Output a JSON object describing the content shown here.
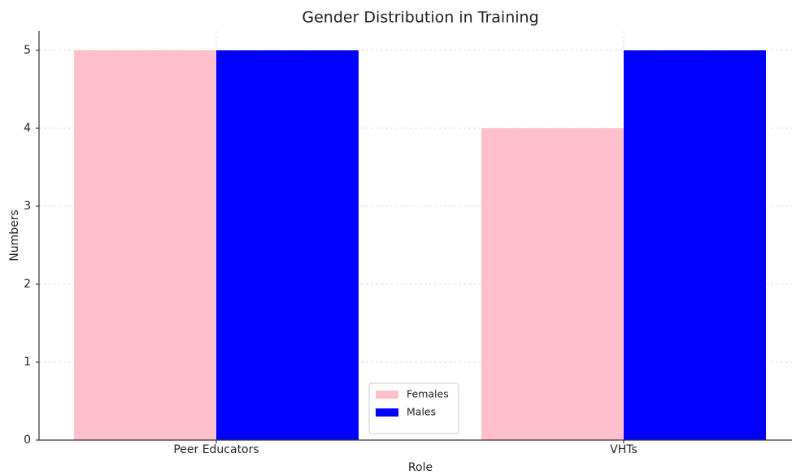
{
  "chart_data": {
    "type": "bar",
    "title": "Gender Distribution in Training",
    "x_label": "Role",
    "y_label": "Numbers",
    "categories": [
      "Peer Educators",
      "VHTs"
    ],
    "series": [
      {
        "name": "Females",
        "color": "#ffc0cb",
        "values": [
          5,
          4
        ]
      },
      {
        "name": "Males",
        "color": "#0000ff",
        "values": [
          5,
          5
        ]
      }
    ],
    "ylim": [
      0,
      5.25
    ],
    "yticks": [
      0,
      1,
      2,
      3,
      4,
      5
    ],
    "grid": true,
    "legend": "lower center"
  }
}
